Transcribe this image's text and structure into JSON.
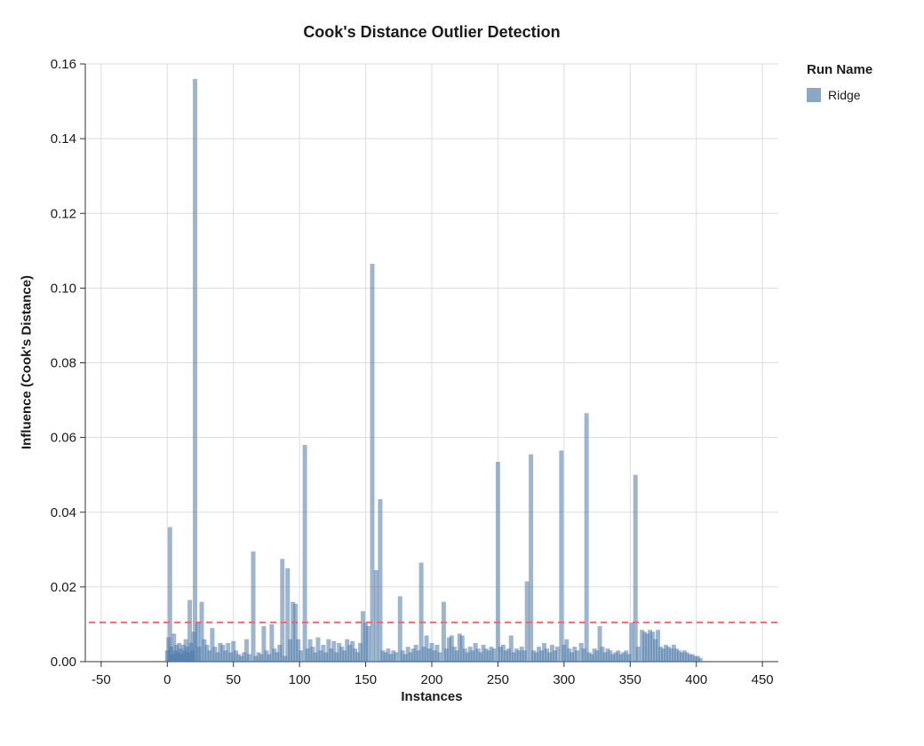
{
  "chart_data": {
    "type": "bar",
    "title": "Cook's Distance Outlier Detection",
    "xlabel": "Instances",
    "ylabel": "Influence (Cook's Distance)",
    "xlim": [
      -50,
      450
    ],
    "ylim": [
      0,
      0.16
    ],
    "x_ticks": [
      -50,
      0,
      50,
      100,
      150,
      200,
      250,
      300,
      350,
      400,
      450
    ],
    "y_ticks": [
      0,
      0.02,
      0.04,
      0.06,
      0.08,
      0.1,
      0.12,
      0.14,
      0.16
    ],
    "grid": true,
    "grid_color": "#dddddd",
    "axis_color": "#333333",
    "legend": {
      "title": "Run Name",
      "position": "right",
      "entries": [
        {
          "label": "Ridge",
          "color": "#4c78a8"
        }
      ]
    },
    "threshold_line": {
      "y": 0.0105,
      "color": "#f2626c",
      "style": "dashed"
    },
    "series": [
      {
        "name": "Ridge",
        "color": "#4c78a8",
        "opacity": 0.55,
        "points": [
          [
            0,
            0.003
          ],
          [
            1,
            0.0065
          ],
          [
            2,
            0.036
          ],
          [
            3,
            0.004
          ],
          [
            4,
            0.002
          ],
          [
            5,
            0.0075
          ],
          [
            6,
            0.003
          ],
          [
            7,
            0.0045
          ],
          [
            8,
            0.0025
          ],
          [
            9,
            0.005
          ],
          [
            10,
            0.0035
          ],
          [
            11,
            0.002
          ],
          [
            12,
            0.0045
          ],
          [
            13,
            0.003
          ],
          [
            14,
            0.006
          ],
          [
            15,
            0.004
          ],
          [
            16,
            0.0025
          ],
          [
            17,
            0.0165
          ],
          [
            18,
            0.005
          ],
          [
            19,
            0.003
          ],
          [
            20,
            0.008
          ],
          [
            21,
            0.156
          ],
          [
            23,
            0.0105
          ],
          [
            24,
            0.004
          ],
          [
            26,
            0.016
          ],
          [
            28,
            0.006
          ],
          [
            30,
            0.0045
          ],
          [
            32,
            0.003
          ],
          [
            34,
            0.009
          ],
          [
            36,
            0.004
          ],
          [
            38,
            0.0025
          ],
          [
            40,
            0.005
          ],
          [
            42,
            0.0045
          ],
          [
            44,
            0.003
          ],
          [
            46,
            0.005
          ],
          [
            48,
            0.0025
          ],
          [
            50,
            0.0055
          ],
          [
            52,
            0.003
          ],
          [
            54,
            0.002
          ],
          [
            56,
            0.0015
          ],
          [
            58,
            0.0025
          ],
          [
            60,
            0.006
          ],
          [
            62,
            0.002
          ],
          [
            65,
            0.0295
          ],
          [
            67,
            0.0015
          ],
          [
            69,
            0.0025
          ],
          [
            71,
            0.002
          ],
          [
            73,
            0.0095
          ],
          [
            75,
            0.003
          ],
          [
            77,
            0.002
          ],
          [
            79,
            0.01
          ],
          [
            81,
            0.0035
          ],
          [
            83,
            0.0025
          ],
          [
            85,
            0.0045
          ],
          [
            87,
            0.0275
          ],
          [
            89,
            0.0015
          ],
          [
            91,
            0.025
          ],
          [
            93,
            0.006
          ],
          [
            95,
            0.016
          ],
          [
            97,
            0.0155
          ],
          [
            99,
            0.006
          ],
          [
            101,
            0.003
          ],
          [
            104,
            0.058
          ],
          [
            106,
            0.0035
          ],
          [
            108,
            0.006
          ],
          [
            110,
            0.004
          ],
          [
            112,
            0.0025
          ],
          [
            114,
            0.0065
          ],
          [
            116,
            0.003
          ],
          [
            118,
            0.0045
          ],
          [
            120,
            0.0025
          ],
          [
            122,
            0.006
          ],
          [
            124,
            0.0035
          ],
          [
            126,
            0.0055
          ],
          [
            128,
            0.0025
          ],
          [
            130,
            0.005
          ],
          [
            132,
            0.004
          ],
          [
            134,
            0.003
          ],
          [
            136,
            0.006
          ],
          [
            138,
            0.0045
          ],
          [
            140,
            0.0055
          ],
          [
            142,
            0.0035
          ],
          [
            144,
            0.0025
          ],
          [
            146,
            0.005
          ],
          [
            148,
            0.0135
          ],
          [
            150,
            0.0105
          ],
          [
            152,
            0.0095
          ],
          [
            155,
            0.1065
          ],
          [
            158,
            0.0245
          ],
          [
            161,
            0.0435
          ],
          [
            163,
            0.003
          ],
          [
            165,
            0.0025
          ],
          [
            167,
            0.0035
          ],
          [
            169,
            0.002
          ],
          [
            171,
            0.003
          ],
          [
            173,
            0.0025
          ],
          [
            176,
            0.0175
          ],
          [
            178,
            0.003
          ],
          [
            180,
            0.002
          ],
          [
            182,
            0.004
          ],
          [
            184,
            0.0025
          ],
          [
            186,
            0.0035
          ],
          [
            188,
            0.0045
          ],
          [
            190,
            0.003
          ],
          [
            192,
            0.0265
          ],
          [
            194,
            0.004
          ],
          [
            196,
            0.007
          ],
          [
            198,
            0.0035
          ],
          [
            200,
            0.005
          ],
          [
            202,
            0.003
          ],
          [
            204,
            0.0045
          ],
          [
            206,
            0.0025
          ],
          [
            209,
            0.016
          ],
          [
            211,
            0.0035
          ],
          [
            213,
            0.0065
          ],
          [
            215,
            0.007
          ],
          [
            217,
            0.004
          ],
          [
            219,
            0.003
          ],
          [
            221,
            0.0075
          ],
          [
            223,
            0.007
          ],
          [
            225,
            0.0035
          ],
          [
            227,
            0.0025
          ],
          [
            229,
            0.004
          ],
          [
            231,
            0.003
          ],
          [
            233,
            0.005
          ],
          [
            235,
            0.0035
          ],
          [
            237,
            0.0025
          ],
          [
            239,
            0.0045
          ],
          [
            241,
            0.0035
          ],
          [
            243,
            0.003
          ],
          [
            245,
            0.004
          ],
          [
            247,
            0.0035
          ],
          [
            250,
            0.0535
          ],
          [
            252,
            0.004
          ],
          [
            254,
            0.0045
          ],
          [
            256,
            0.003
          ],
          [
            258,
            0.0035
          ],
          [
            260,
            0.007
          ],
          [
            262,
            0.0025
          ],
          [
            264,
            0.0035
          ],
          [
            266,
            0.003
          ],
          [
            268,
            0.004
          ],
          [
            270,
            0.003
          ],
          [
            272,
            0.0215
          ],
          [
            275,
            0.0555
          ],
          [
            277,
            0.003
          ],
          [
            279,
            0.0025
          ],
          [
            281,
            0.004
          ],
          [
            283,
            0.003
          ],
          [
            285,
            0.005
          ],
          [
            287,
            0.0035
          ],
          [
            289,
            0.0025
          ],
          [
            291,
            0.0045
          ],
          [
            293,
            0.003
          ],
          [
            295,
            0.004
          ],
          [
            298,
            0.0565
          ],
          [
            300,
            0.0045
          ],
          [
            302,
            0.006
          ],
          [
            304,
            0.0035
          ],
          [
            306,
            0.0025
          ],
          [
            308,
            0.004
          ],
          [
            310,
            0.003
          ],
          [
            313,
            0.005
          ],
          [
            315,
            0.0035
          ],
          [
            317,
            0.0665
          ],
          [
            319,
            0.0025
          ],
          [
            321,
            0.002
          ],
          [
            323,
            0.0035
          ],
          [
            325,
            0.003
          ],
          [
            327,
            0.0095
          ],
          [
            329,
            0.004
          ],
          [
            331,
            0.0025
          ],
          [
            333,
            0.0035
          ],
          [
            335,
            0.003
          ],
          [
            337,
            0.002
          ],
          [
            339,
            0.0025
          ],
          [
            341,
            0.003
          ],
          [
            343,
            0.002
          ],
          [
            345,
            0.0025
          ],
          [
            347,
            0.003
          ],
          [
            349,
            0.002
          ],
          [
            351,
            0.0105
          ],
          [
            354,
            0.05
          ],
          [
            356,
            0.004
          ],
          [
            359,
            0.0085
          ],
          [
            361,
            0.008
          ],
          [
            363,
            0.0075
          ],
          [
            365,
            0.0085
          ],
          [
            367,
            0.008
          ],
          [
            369,
            0.006
          ],
          [
            371,
            0.0085
          ],
          [
            373,
            0.004
          ],
          [
            375,
            0.0035
          ],
          [
            377,
            0.0045
          ],
          [
            379,
            0.004
          ],
          [
            381,
            0.0035
          ],
          [
            383,
            0.0045
          ],
          [
            385,
            0.0035
          ],
          [
            387,
            0.003
          ],
          [
            389,
            0.0025
          ],
          [
            391,
            0.003
          ],
          [
            393,
            0.0025
          ],
          [
            395,
            0.002
          ],
          [
            397,
            0.002
          ],
          [
            399,
            0.0015
          ],
          [
            401,
            0.0015
          ],
          [
            403,
            0.001
          ]
        ]
      }
    ]
  }
}
